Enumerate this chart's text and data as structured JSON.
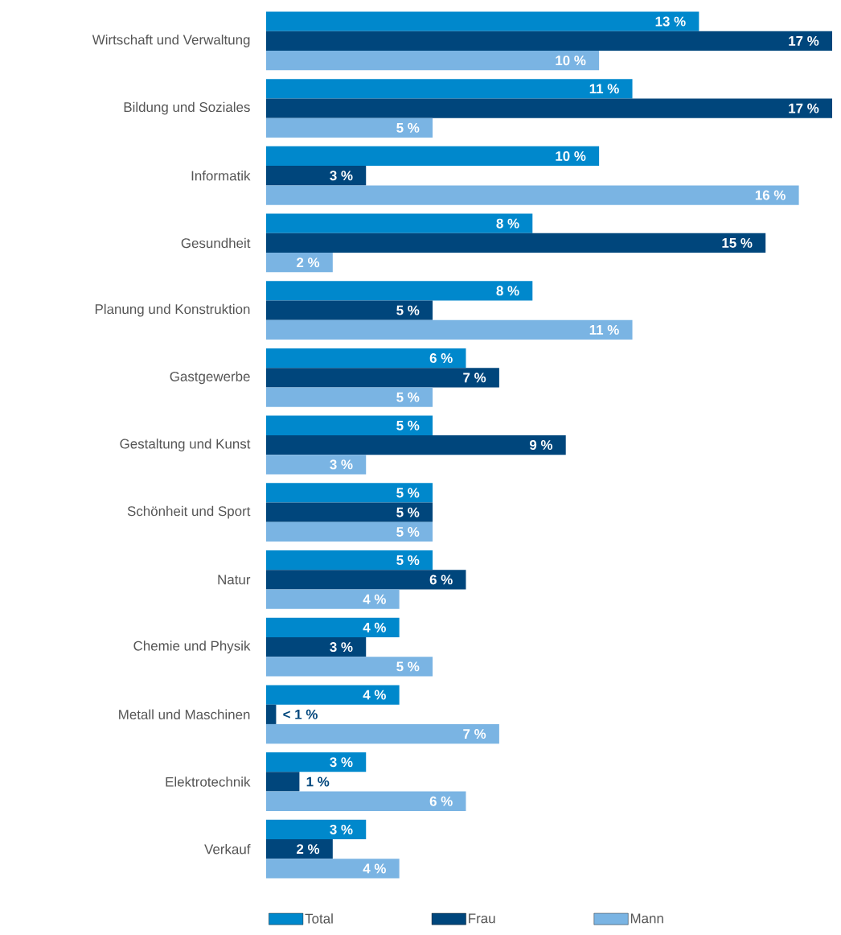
{
  "chart_data": {
    "type": "bar",
    "orientation": "horizontal",
    "legend": "bottom",
    "categories": [
      "Wirtschaft und Verwaltung",
      "Bildung und Soziales",
      "Informatik",
      "Gesundheit",
      "Planung und Konstruktion",
      "Gastgewerbe",
      "Gestaltung und Kunst",
      "Schönheit und Sport",
      "Natur",
      "Chemie und Physik",
      "Metall und Maschinen",
      "Elektrotechnik",
      "Verkauf"
    ],
    "series": [
      {
        "name": "Total",
        "color": "#0088cc",
        "values": [
          13,
          11,
          10,
          8,
          8,
          6,
          5,
          5,
          5,
          4,
          4,
          3,
          3
        ],
        "value_labels": [
          "13 %",
          "11 %",
          "10 %",
          "8 %",
          "8 %",
          "6 %",
          "5 %",
          "5 %",
          "5 %",
          "4 %",
          "4 %",
          "3 %",
          "3 %"
        ]
      },
      {
        "name": "Frau",
        "color": "#00467c",
        "values": [
          17,
          17,
          3,
          15,
          5,
          7,
          9,
          5,
          6,
          3,
          0.3,
          1,
          2
        ],
        "value_labels": [
          "17 %",
          "17 %",
          "3 %",
          "15 %",
          "5 %",
          "7 %",
          "9 %",
          "5 %",
          "6 %",
          "3 %",
          "< 1 %",
          "1 %",
          "2 %"
        ]
      },
      {
        "name": "Mann",
        "color": "#7ab4e3",
        "values": [
          10,
          5,
          16,
          2,
          11,
          5,
          3,
          5,
          4,
          5,
          7,
          6,
          4
        ],
        "value_labels": [
          "10 %",
          "5 %",
          "16 %",
          "2 %",
          "11 %",
          "5 %",
          "3 %",
          "5 %",
          "4 %",
          "5 %",
          "7 %",
          "6 %",
          "4 %"
        ]
      }
    ]
  }
}
